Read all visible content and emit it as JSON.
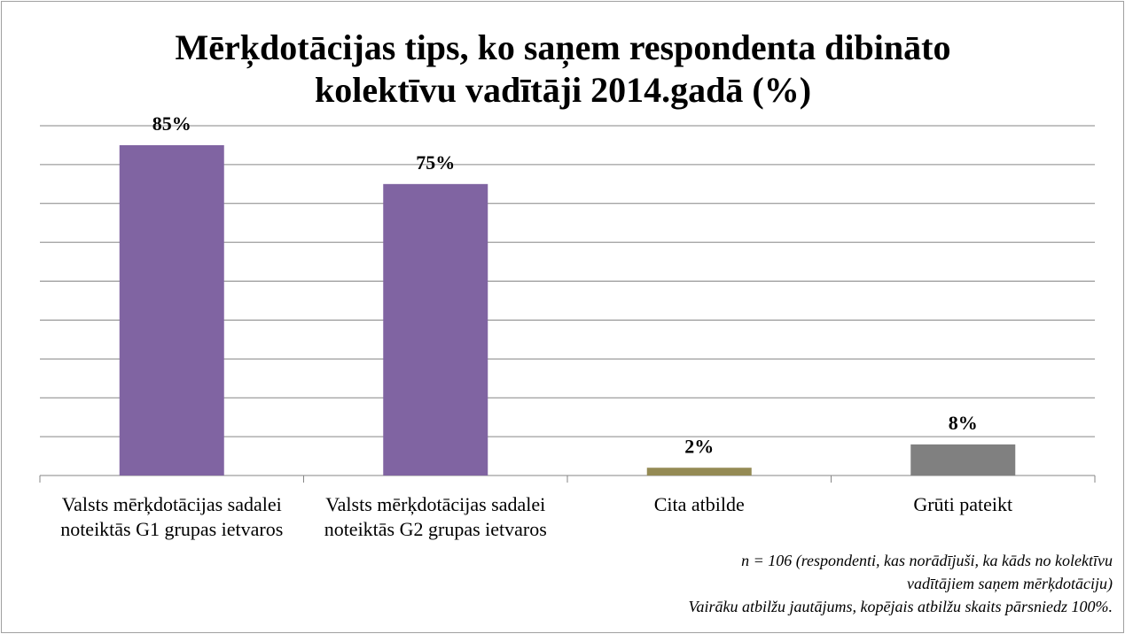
{
  "chart_data": {
    "type": "bar",
    "title": "Mērķdotācijas tips, ko saņem respondenta dibināto kolektīvu vadītāji 2014.gadā (%)",
    "categories": [
      "Valsts mērķdotācijas sadalei noteiktās G1 grupas ietvaros",
      "Valsts mērķdotācijas sadalei noteiktās G2 grupas ietvaros",
      "Cita atbilde",
      "Grūti pateikt"
    ],
    "values": [
      85,
      75,
      2,
      8
    ],
    "value_labels": [
      "85%",
      "75%",
      "2%",
      "8%"
    ],
    "colors": [
      "#8064a2",
      "#8064a2",
      "#948a54",
      "#808080"
    ],
    "ylim": [
      0,
      90
    ],
    "yticks": [
      0,
      10,
      20,
      30,
      40,
      50,
      60,
      70,
      80,
      90
    ],
    "grid": true,
    "notes": [
      "n = 106 (respondenti, kas norādījuši, ka kāds no kolektīvu",
      "vadītājiem saņem mērķdotāciju)",
      "Vairāku atbilžu jautājums, kopējais atbilžu skaits pārsniedz 100%."
    ]
  }
}
